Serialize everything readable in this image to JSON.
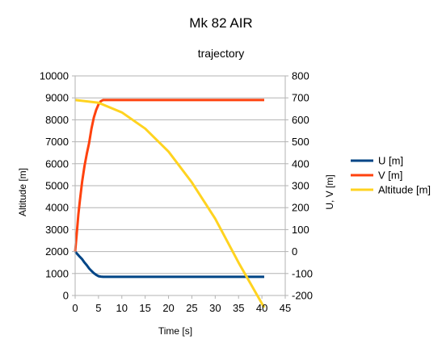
{
  "chart_data": {
    "type": "line",
    "title": "Mk 82 AIR",
    "subtitle": "trajectory",
    "xlabel": "Time [s]",
    "ylabel": "Altitude [m]",
    "y2label": "U, V [m]",
    "xlim": [
      0,
      45
    ],
    "ylim": [
      0,
      10000
    ],
    "y2lim": [
      -200,
      800
    ],
    "xticks": [
      0,
      5,
      10,
      15,
      20,
      25,
      30,
      35,
      40,
      45
    ],
    "yticks": [
      0,
      1000,
      2000,
      3000,
      4000,
      5000,
      6000,
      7000,
      8000,
      9000,
      10000
    ],
    "y2ticks": [
      -200,
      -100,
      0,
      100,
      200,
      300,
      400,
      500,
      600,
      700,
      800
    ],
    "grid": "horizontal",
    "legend_position": "right",
    "series": [
      {
        "name": "U [m]",
        "axis": "right",
        "color": "#004586",
        "x": [
          0,
          0.5,
          1,
          1.5,
          2,
          2.5,
          3,
          3.5,
          4,
          4.5,
          5,
          5.5,
          6,
          10,
          15,
          20,
          25,
          30,
          35,
          40.5
        ],
        "y": [
          0,
          -12,
          -24,
          -35,
          -50,
          -62,
          -77,
          -88,
          -98,
          -106,
          -112,
          -114,
          -115,
          -115,
          -115,
          -115,
          -115,
          -115,
          -115,
          -115
        ]
      },
      {
        "name": "V [m]",
        "axis": "right",
        "color": "#ff420e",
        "x": [
          0,
          0.3,
          0.7,
          1,
          1.5,
          2,
          2.5,
          3,
          3.5,
          4,
          4.5,
          5,
          5.5,
          6,
          10,
          15,
          20,
          25,
          30,
          35,
          40.5
        ],
        "y": [
          0,
          70,
          170,
          230,
          320,
          390,
          445,
          495,
          560,
          610,
          645,
          670,
          685,
          690,
          690,
          690,
          690,
          690,
          690,
          690,
          690
        ]
      },
      {
        "name": "Altitude [m]",
        "axis": "left",
        "color": "#ffd320",
        "x": [
          0,
          5,
          10,
          15,
          20,
          25,
          30,
          35,
          40.5
        ],
        "y": [
          8900,
          8780,
          8340,
          7600,
          6550,
          5150,
          3500,
          1500,
          -550
        ]
      }
    ]
  }
}
